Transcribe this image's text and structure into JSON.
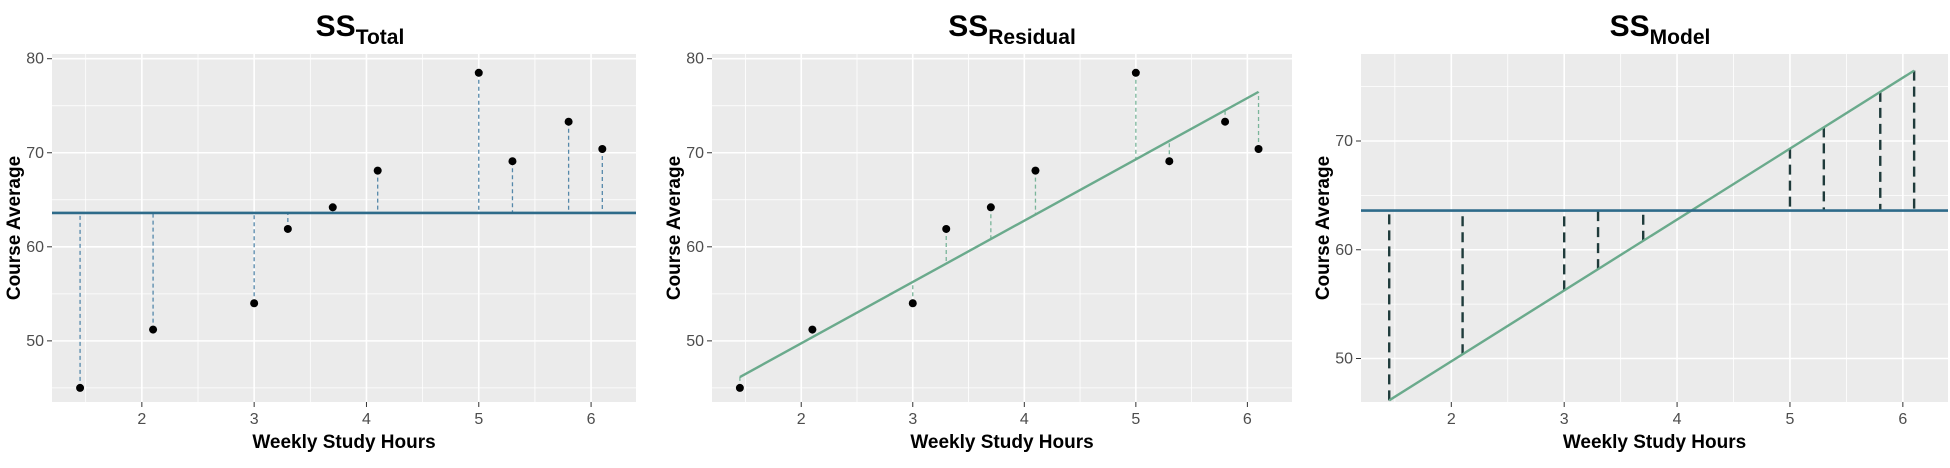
{
  "chart_data": [
    {
      "type": "scatter",
      "title": "SS",
      "title_subscript": "Total",
      "xlabel": "Weekly Study Hours",
      "ylabel": "Course Average",
      "xlim": [
        1.2,
        6.4
      ],
      "ylim": [
        43.5,
        80.5
      ],
      "xticks": [
        2,
        3,
        4,
        5,
        6
      ],
      "yticks": [
        50,
        60,
        70,
        80
      ],
      "grid": true,
      "x": [
        1.45,
        2.1,
        3.0,
        3.3,
        3.7,
        4.1,
        5.0,
        5.3,
        5.8,
        6.1
      ],
      "y": [
        45.0,
        51.2,
        54.0,
        61.9,
        64.2,
        68.1,
        78.5,
        69.1,
        73.3,
        70.4
      ],
      "mean_line": 63.6,
      "show_mean_line": true,
      "show_regression_line": false,
      "segments": "point-to-mean",
      "colors": {
        "points": "#000000",
        "mean_line": "#2e6b8a",
        "regression_line": "#6aaa8c",
        "segments": "#5588aa"
      }
    },
    {
      "type": "scatter",
      "title": "SS",
      "title_subscript": "Residual",
      "xlabel": "Weekly Study Hours",
      "ylabel": "Course Average",
      "xlim": [
        1.2,
        6.4
      ],
      "ylim": [
        43.5,
        80.5
      ],
      "xticks": [
        2,
        3,
        4,
        5,
        6
      ],
      "yticks": [
        50,
        60,
        70,
        80
      ],
      "grid": true,
      "x": [
        1.45,
        2.1,
        3.0,
        3.3,
        3.7,
        4.1,
        5.0,
        5.3,
        5.8,
        6.1
      ],
      "y": [
        45.0,
        51.2,
        54.0,
        61.9,
        64.2,
        68.1,
        78.5,
        69.1,
        73.3,
        70.4
      ],
      "regression": {
        "intercept": 36.7,
        "slope": 6.52
      },
      "show_mean_line": false,
      "show_regression_line": true,
      "segments": "point-to-regression",
      "colors": {
        "points": "#000000",
        "mean_line": "#2e6b8a",
        "regression_line": "#6aaa8c",
        "segments": "#7ab59a"
      }
    },
    {
      "type": "line",
      "title": "SS",
      "title_subscript": "Model",
      "xlabel": "Weekly Study Hours",
      "ylabel": "Course Average",
      "xlim": [
        1.2,
        6.4
      ],
      "ylim": [
        46.0,
        78.0
      ],
      "xticks": [
        2,
        3,
        4,
        5,
        6
      ],
      "yticks": [
        50,
        60,
        70
      ],
      "grid": true,
      "x": [
        1.45,
        2.1,
        3.0,
        3.3,
        3.7,
        4.1,
        5.0,
        5.3,
        5.8,
        6.1
      ],
      "mean_line": 63.6,
      "regression": {
        "intercept": 36.7,
        "slope": 6.52
      },
      "show_mean_line": true,
      "show_regression_line": true,
      "segments": "regression-to-mean",
      "colors": {
        "mean_line": "#2e6b8a",
        "regression_line": "#6aaa8c",
        "segments": "#1f3b3b"
      }
    }
  ]
}
